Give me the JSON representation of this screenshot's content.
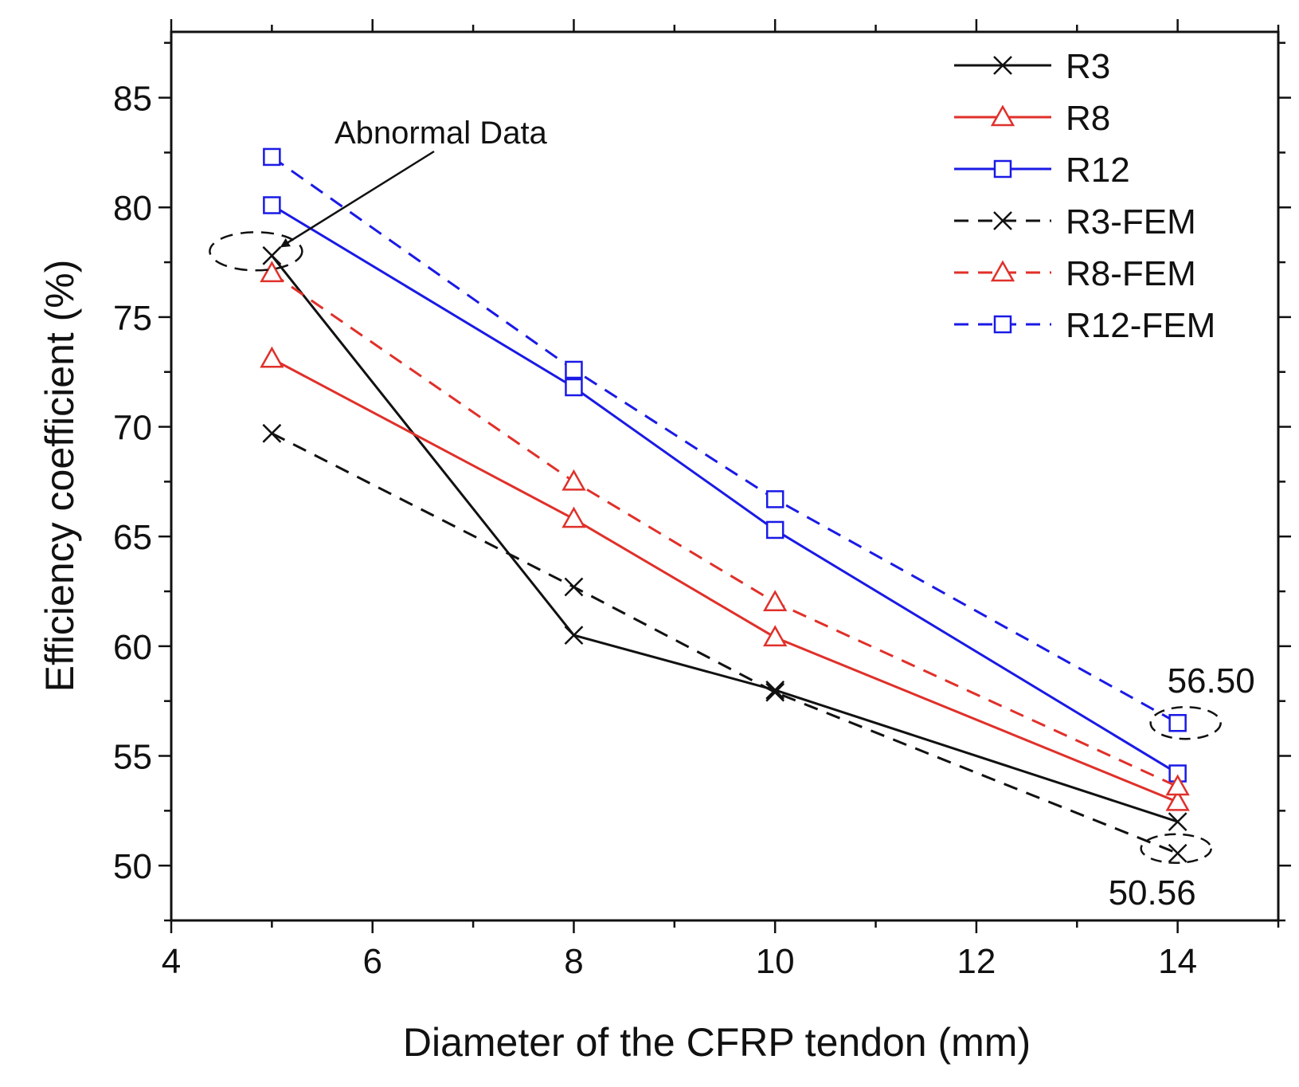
{
  "chart_data": {
    "type": "line",
    "title": "",
    "xlabel": "Diameter of the CFRP tendon (mm)",
    "ylabel": "Efficiency coefficient (%)",
    "xlim": [
      4,
      15
    ],
    "ylim": [
      47.5,
      88
    ],
    "xticks": [
      4,
      6,
      8,
      10,
      12,
      14
    ],
    "yticks": [
      50,
      55,
      60,
      65,
      70,
      75,
      80,
      85
    ],
    "grid": false,
    "legend_position": "top-right",
    "x": [
      5,
      8,
      10,
      14
    ],
    "series": [
      {
        "name": "R3",
        "values": [
          77.8,
          60.5,
          58.0,
          52.0
        ],
        "color": "#111111",
        "dash": "solid",
        "marker": "x"
      },
      {
        "name": "R8",
        "values": [
          73.1,
          65.8,
          60.4,
          52.9
        ],
        "color": "#e0302a",
        "dash": "solid",
        "marker": "triangle"
      },
      {
        "name": "R12",
        "values": [
          80.1,
          71.8,
          65.3,
          54.2
        ],
        "color": "#1a1ae6",
        "dash": "solid",
        "marker": "square"
      },
      {
        "name": "R3-FEM",
        "values": [
          69.7,
          62.7,
          57.9,
          50.56
        ],
        "color": "#111111",
        "dash": "dashed",
        "marker": "x"
      },
      {
        "name": "R8-FEM",
        "values": [
          77.0,
          67.5,
          62.0,
          53.6
        ],
        "color": "#e0302a",
        "dash": "dashed",
        "marker": "triangle"
      },
      {
        "name": "R12-FEM",
        "values": [
          82.3,
          72.6,
          66.7,
          56.5
        ],
        "color": "#1a1ae6",
        "dash": "dashed",
        "marker": "square"
      }
    ],
    "annotations": {
      "abnormal": {
        "text": "Abnormal Data",
        "x": 5,
        "y": 78.0
      },
      "top_value": {
        "text": "56.50",
        "x": 14,
        "y": 56.5
      },
      "bottom_value": {
        "text": "50.56",
        "x": 14,
        "y": 50.56
      }
    }
  }
}
